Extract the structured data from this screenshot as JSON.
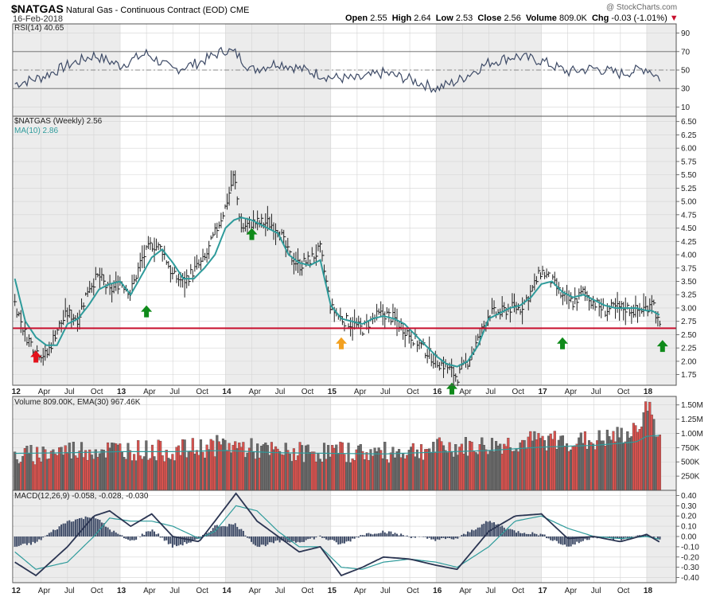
{
  "header": {
    "symbol": "$NATGAS",
    "description": "Natural Gas - Continuous Contract (EOD)",
    "exchange": "CME",
    "date": "16-Feb-2018",
    "watermark": "@ StockCharts.com",
    "open_label": "Open",
    "open": "2.55",
    "high_label": "High",
    "high": "2.64",
    "low_label": "Low",
    "low": "2.53",
    "close_label": "Close",
    "close": "2.56",
    "volume_label": "Volume",
    "volume": "809.0K",
    "chg_label": "Chg",
    "chg": "-0.03 (-1.01%)",
    "chg_icon": "triangle-down-icon",
    "chg_color": "#c8102e"
  },
  "chart_data": [
    {
      "type": "line",
      "name": "rsi-panel",
      "legend": "RSI(14) 40.65",
      "ylim": [
        0,
        100
      ],
      "yticks": [
        10,
        30,
        50,
        70,
        90
      ],
      "reference_lines": [
        30,
        50,
        70
      ],
      "x_ticks": [
        "12",
        "Apr",
        "Jul",
        "Oct",
        "13",
        "Apr",
        "Jul",
        "Oct",
        "14",
        "Apr",
        "Jul",
        "Oct",
        "15",
        "Apr",
        "Jul",
        "Oct",
        "16",
        "Apr",
        "Jul",
        "Oct",
        "17",
        "Apr",
        "Jul",
        "Oct",
        "18"
      ],
      "x": [
        2012.0,
        2012.25,
        2012.5,
        2012.75,
        2013.0,
        2013.25,
        2013.5,
        2013.75,
        2014.0,
        2014.1,
        2014.25,
        2014.5,
        2014.75,
        2015.0,
        2015.25,
        2015.5,
        2015.75,
        2016.0,
        2016.2,
        2016.5,
        2016.75,
        2017.0,
        2017.25,
        2017.5,
        2017.75,
        2018.0,
        2018.13
      ],
      "values": [
        35,
        42,
        55,
        66,
        55,
        68,
        50,
        58,
        72,
        68,
        50,
        58,
        50,
        42,
        40,
        47,
        40,
        30,
        38,
        58,
        65,
        60,
        48,
        52,
        46,
        52,
        40.65
      ]
    },
    {
      "type": "line",
      "name": "price-panel",
      "legend": "$NATGAS (Weekly) 2.56",
      "ma_legend": "MA(10) 2.86",
      "ylim": [
        1.55,
        6.6
      ],
      "yticks": [
        1.75,
        2.0,
        2.25,
        2.5,
        2.75,
        3.0,
        3.25,
        3.5,
        3.75,
        4.0,
        4.25,
        4.5,
        4.75,
        5.0,
        5.25,
        5.5,
        5.75,
        6.0,
        6.25,
        6.5
      ],
      "ytick_labels": [
        "1.75",
        "2.00",
        "2.25",
        "2.50",
        "2.75",
        "3.00",
        "3.25",
        "3.50",
        "3.75",
        "4.00",
        "4.25",
        "4.50",
        "4.75",
        "5.00",
        "5.25",
        "5.50",
        "5.75",
        "6.00",
        "6.25",
        "6.50"
      ],
      "support_level": 2.62,
      "x": [
        2012.0,
        2012.1,
        2012.2,
        2012.3,
        2012.4,
        2012.5,
        2012.6,
        2012.7,
        2012.8,
        2012.9,
        2013.0,
        2013.1,
        2013.2,
        2013.3,
        2013.4,
        2013.5,
        2013.6,
        2013.7,
        2013.8,
        2013.9,
        2014.0,
        2014.08,
        2014.15,
        2014.25,
        2014.4,
        2014.5,
        2014.6,
        2014.7,
        2014.8,
        2014.9,
        2015.0,
        2015.1,
        2015.2,
        2015.3,
        2015.4,
        2015.5,
        2015.6,
        2015.7,
        2015.8,
        2015.9,
        2016.0,
        2016.1,
        2016.2,
        2016.3,
        2016.4,
        2016.5,
        2016.6,
        2016.7,
        2016.8,
        2016.9,
        2017.0,
        2017.1,
        2017.2,
        2017.3,
        2017.4,
        2017.5,
        2017.6,
        2017.7,
        2017.8,
        2017.9,
        2018.0,
        2018.05,
        2018.13
      ],
      "close": [
        3.1,
        2.5,
        2.2,
        2.1,
        2.6,
        2.9,
        2.8,
        3.4,
        3.6,
        3.3,
        3.5,
        3.3,
        3.9,
        4.2,
        4.1,
        3.6,
        3.5,
        3.7,
        3.9,
        4.4,
        4.9,
        5.5,
        4.5,
        4.6,
        4.6,
        4.5,
        4.0,
        3.8,
        3.9,
        4.1,
        3.0,
        2.8,
        2.7,
        2.6,
        2.8,
        2.9,
        2.8,
        2.6,
        2.4,
        2.2,
        2.0,
        1.9,
        1.7,
        2.0,
        2.4,
        2.9,
        2.9,
        3.0,
        3.0,
        3.3,
        3.7,
        3.5,
        3.2,
        3.1,
        3.3,
        3.1,
        2.95,
        3.0,
        3.0,
        2.95,
        3.0,
        3.2,
        2.56
      ],
      "ma": [
        3.55,
        2.75,
        2.45,
        2.3,
        2.3,
        2.7,
        2.8,
        3.05,
        3.35,
        3.45,
        3.5,
        3.25,
        3.6,
        3.95,
        4.1,
        3.85,
        3.55,
        3.55,
        3.75,
        4.0,
        4.5,
        4.65,
        4.7,
        4.65,
        4.5,
        4.4,
        4.0,
        3.85,
        3.8,
        3.9,
        3.05,
        2.8,
        2.75,
        2.7,
        2.8,
        2.85,
        2.8,
        2.7,
        2.5,
        2.3,
        2.1,
        1.95,
        1.9,
        2.0,
        2.3,
        2.8,
        2.9,
        3.0,
        3.05,
        3.2,
        3.45,
        3.5,
        3.3,
        3.2,
        3.25,
        3.15,
        3.05,
        3.0,
        3.0,
        3.0,
        2.95,
        2.95,
        2.86
      ],
      "markers": [
        {
          "x": 2012.2,
          "y": 2.2,
          "color": "#e3121b",
          "icon": "arrow-up-icon"
        },
        {
          "x": 2013.25,
          "y": 3.05,
          "color": "#0f8a1a",
          "icon": "arrow-up-icon"
        },
        {
          "x": 2014.25,
          "y": 4.5,
          "color": "#0f8a1a",
          "icon": "arrow-up-icon"
        },
        {
          "x": 2015.1,
          "y": 2.45,
          "color": "#f2a020",
          "icon": "arrow-up-icon"
        },
        {
          "x": 2016.15,
          "y": 1.6,
          "color": "#0f8a1a",
          "icon": "arrow-up-icon"
        },
        {
          "x": 2017.2,
          "y": 2.45,
          "color": "#0f8a1a",
          "icon": "arrow-up-icon"
        },
        {
          "x": 2018.15,
          "y": 2.4,
          "color": "#0f8a1a",
          "icon": "arrow-up-icon"
        }
      ]
    },
    {
      "type": "bar",
      "name": "volume-panel",
      "legend": "Volume 809.00K, EMA(30) 967.46K",
      "ylim": [
        0,
        1650000
      ],
      "yticks": [
        250000,
        500000,
        750000,
        1000000,
        1250000,
        1500000
      ],
      "ytick_labels": [
        "250K",
        "500K",
        "750K",
        "1.00M",
        "1.25M",
        "1.50M"
      ],
      "x": [
        2012.0,
        2012.5,
        2013.0,
        2013.5,
        2014.0,
        2014.5,
        2015.0,
        2015.5,
        2016.0,
        2016.5,
        2017.0,
        2017.5,
        2017.9,
        2018.0,
        2018.13
      ],
      "values": [
        560000,
        690000,
        700000,
        670000,
        780000,
        640000,
        660000,
        640000,
        720000,
        760000,
        860000,
        840000,
        990000,
        1550000,
        809000
      ],
      "ema": [
        650000,
        660000,
        680000,
        680000,
        700000,
        660000,
        650000,
        640000,
        670000,
        700000,
        760000,
        790000,
        850000,
        950000,
        967460
      ],
      "up_color": "#6b6b6b",
      "down_color": "#d9534f"
    },
    {
      "type": "line",
      "name": "macd-panel",
      "legend": "MACD(12,26,9) -0.058, -0.028, -0.030",
      "ylim": [
        -0.45,
        0.45
      ],
      "yticks": [
        -0.4,
        -0.3,
        -0.2,
        -0.1,
        0.0,
        0.1,
        0.2,
        0.3,
        0.4
      ],
      "ytick_labels": [
        "-0.40",
        "-0.30",
        "-0.20",
        "-0.10",
        "0.00",
        "0.10",
        "0.20",
        "0.30",
        "0.40"
      ],
      "x": [
        2012.0,
        2012.2,
        2012.5,
        2012.75,
        2012.9,
        2013.1,
        2013.3,
        2013.5,
        2013.75,
        2013.9,
        2014.1,
        2014.3,
        2014.5,
        2014.7,
        2014.9,
        2015.1,
        2015.3,
        2015.5,
        2015.75,
        2016.0,
        2016.2,
        2016.5,
        2016.75,
        2017.0,
        2017.25,
        2017.5,
        2017.75,
        2018.0,
        2018.13
      ],
      "macd": [
        -0.25,
        -0.38,
        -0.1,
        0.2,
        0.25,
        0.1,
        0.22,
        0.0,
        -0.05,
        0.15,
        0.42,
        0.15,
        0.0,
        -0.15,
        -0.1,
        -0.38,
        -0.3,
        -0.2,
        -0.22,
        -0.28,
        -0.32,
        0.05,
        0.2,
        0.22,
        -0.02,
        0.0,
        -0.05,
        0.02,
        -0.058
      ],
      "signal": [
        -0.15,
        -0.32,
        -0.25,
        0.0,
        0.18,
        0.15,
        0.15,
        0.1,
        -0.02,
        0.05,
        0.3,
        0.25,
        0.05,
        -0.1,
        -0.1,
        -0.3,
        -0.32,
        -0.25,
        -0.22,
        -0.25,
        -0.3,
        -0.1,
        0.15,
        0.2,
        0.08,
        0.0,
        -0.02,
        0.0,
        -0.028
      ],
      "histogram": [
        -0.1,
        -0.06,
        0.15,
        0.2,
        0.07,
        -0.05,
        0.07,
        -0.1,
        -0.03,
        0.1,
        0.12,
        -0.1,
        -0.05,
        -0.05,
        0.0,
        -0.08,
        0.02,
        0.05,
        0.0,
        -0.03,
        -0.02,
        0.15,
        0.05,
        0.02,
        -0.1,
        0.0,
        -0.03,
        0.02,
        -0.03
      ]
    }
  ]
}
